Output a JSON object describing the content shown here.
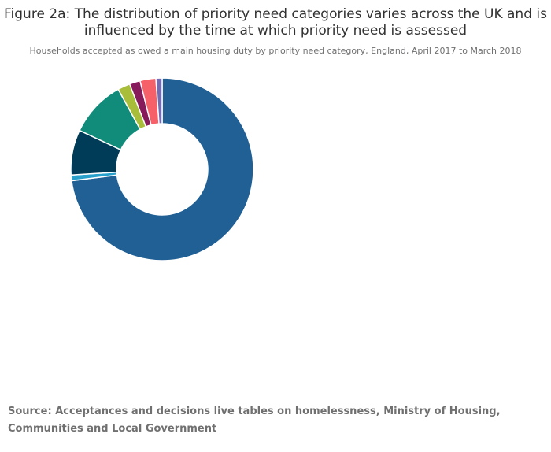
{
  "chart_data": {
    "type": "pie",
    "donut": true,
    "title": "Figure 2a: The distribution of priority need categories varies across the UK and is influenced by the time at which priority need is assessed",
    "subtitle": "Households accepted as owed a main housing duty by priority need category, England, April 2017 to March 2018",
    "values": [
      73.0,
      1.0,
      8.0,
      10.0,
      2.2,
      1.9,
      2.8,
      1.1
    ],
    "colors": [
      "#206095",
      "#27a0cc",
      "#003c57",
      "#118c7b",
      "#a8bd3a",
      "#871a5b",
      "#f66068",
      "#746cb1"
    ],
    "legend": "none"
  },
  "source": "Source: Acceptances and decisions live tables on homelessness, Ministry of Housing, Communities and Local Government"
}
